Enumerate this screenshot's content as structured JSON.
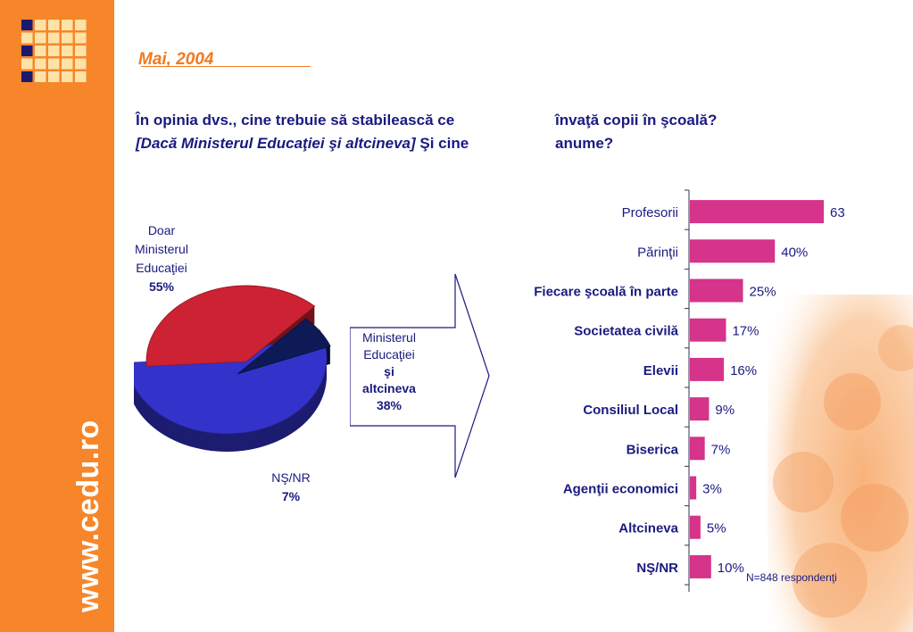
{
  "site": {
    "url": "www.cedu.ro",
    "date": "Mai, 2004"
  },
  "question": {
    "line1a": "În opinia dvs., cine trebuie să stabilească ce",
    "line1b": "învaţă copii în şcoală?",
    "line2_italic": "[Dacă Ministerul Educaţiei şi altcineva]",
    "line2_rest": " Şi cine",
    "line2b": "anume?"
  },
  "pie": {
    "slices": [
      {
        "label_lines": [
          "Doar",
          "Ministerul",
          "Educaţiei"
        ],
        "value_label": "55%",
        "value": 55,
        "color": "#3333cc"
      },
      {
        "label_lines": [
          "Ministerul",
          "Educaţiei",
          "şi",
          "altcineva"
        ],
        "value_label": "38%",
        "value": 38,
        "color": "#cc2233"
      },
      {
        "label_lines": [
          "NŞ/NR"
        ],
        "value_label": "7%",
        "value": 7,
        "color": "#0d1a55"
      }
    ]
  },
  "chart_data": {
    "type": "bar",
    "orientation": "horizontal",
    "categories": [
      "Profesorii",
      "Părinţii",
      "Fiecare şcoală în parte",
      "Societatea civilă",
      "Elevii",
      "Consiliul Local",
      "Biserica",
      "Agenţii economici",
      "Altcineva",
      "NŞ/NR"
    ],
    "bold_categories": [
      false,
      false,
      true,
      true,
      true,
      true,
      true,
      true,
      true,
      true
    ],
    "values": [
      63,
      40,
      25,
      17,
      16,
      9,
      7,
      3,
      5,
      10
    ],
    "value_labels": [
      "63",
      "40%",
      "25%",
      "17%",
      "16%",
      "9%",
      "7%",
      "3%",
      "5%",
      "10%"
    ],
    "xlim": [
      0,
      70
    ],
    "bar_color": "#d6338a",
    "note": "N=848 respondenţi"
  }
}
